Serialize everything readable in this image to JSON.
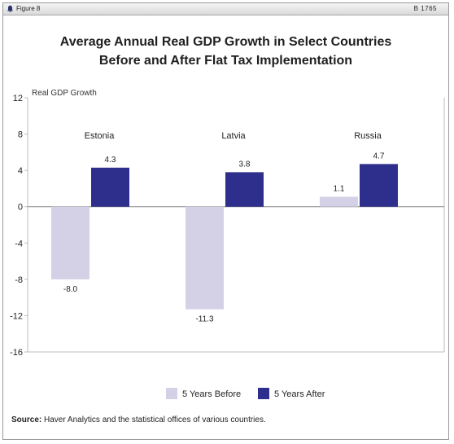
{
  "header": {
    "figure_label": "Figure 8",
    "code": "B 1765"
  },
  "title_line1": "Average Annual Real GDP Growth in Select Countries",
  "title_line2": "Before and After Flat Tax Implementation",
  "source": {
    "label": "Source:",
    "text": " Haver Analytics and the statistical offices of various countries."
  },
  "colors": {
    "before": "#d4d1e6",
    "after": "#2e2f8c",
    "axis": "#bdbdbd",
    "zero": "#888888"
  },
  "chart_data": {
    "type": "bar",
    "ylabel": "Real GDP Growth",
    "ylim": [
      -16,
      12
    ],
    "yticks": [
      "12",
      "8",
      "4",
      "0",
      "-4",
      "-8",
      "-12",
      "-16"
    ],
    "yticks_values": [
      12,
      8,
      4,
      0,
      -4,
      -8,
      -12,
      -16
    ],
    "categories": [
      "Estonia",
      "Latvia",
      "Russia"
    ],
    "series": [
      {
        "name": "5 Years Before",
        "values": [
          -8.0,
          -11.3,
          1.1
        ],
        "labels": [
          "-8.0",
          "-11.3",
          "1.1"
        ],
        "color": "#d4d1e6"
      },
      {
        "name": "5 Years After",
        "values": [
          4.3,
          3.8,
          4.7
        ],
        "labels": [
          "4.3",
          "3.8",
          "4.7"
        ],
        "color": "#2e2f8c"
      }
    ],
    "legend_position": "bottom"
  }
}
